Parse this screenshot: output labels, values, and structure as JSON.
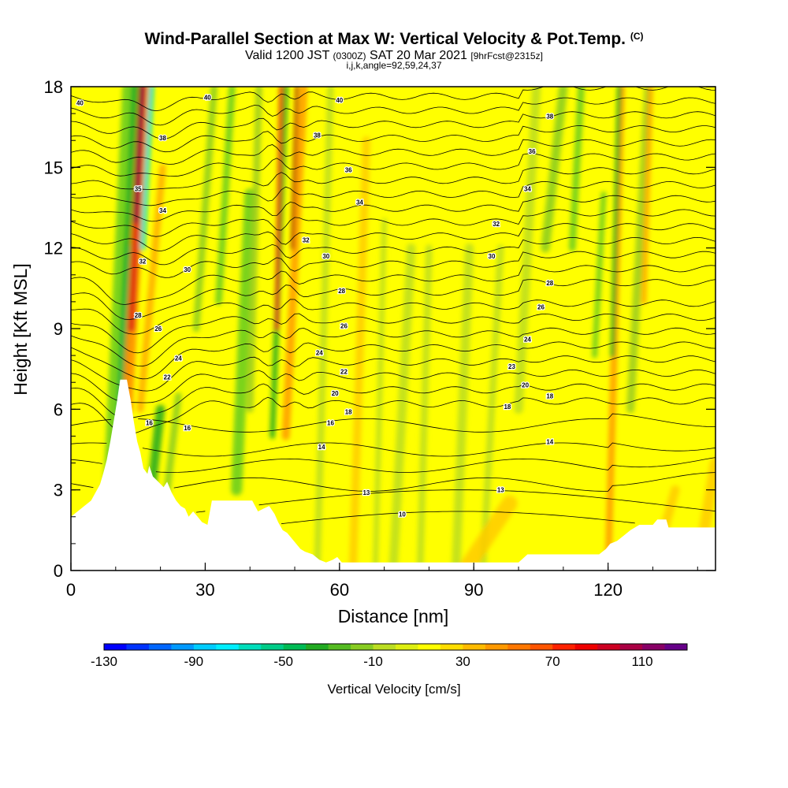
{
  "title": {
    "main": "Wind-Parallel Section at Max W: Vertical Velocity & Pot.Temp.",
    "copyright": "(C)",
    "valid_label": "Valid 1200 JST",
    "utc": "(0300Z)",
    "date": "SAT 20 Mar 2021",
    "forecast": "[9hrFcst@2315z]",
    "params": "i,j,k,angle=92,59,24,37"
  },
  "chart_data": {
    "type": "heatmap",
    "xlabel": "Distance [nm]",
    "ylabel": "Height [Kft MSL]",
    "xlim": [
      0,
      144
    ],
    "ylim": [
      0,
      18
    ],
    "x_ticks": [
      "0",
      "30",
      "60",
      "90",
      "120"
    ],
    "y_ticks": [
      "0",
      "3",
      "6",
      "9",
      "12",
      "15",
      "18"
    ],
    "x_tick_values": [
      0,
      30,
      60,
      90,
      120
    ],
    "y_tick_values": [
      0,
      3,
      6,
      9,
      12,
      15,
      18
    ],
    "colorbar": {
      "title": "Vertical Velocity [cm/s]",
      "tick_labels": [
        "-130",
        "-90",
        "-50",
        "-10",
        "30",
        "70",
        "110"
      ],
      "tick_values": [
        -130,
        -90,
        -50,
        -10,
        30,
        70,
        110
      ],
      "range": [
        -130,
        130
      ],
      "colors": [
        "#0000ff",
        "#0033ff",
        "#0066ff",
        "#0099ff",
        "#00ccff",
        "#00eeff",
        "#00ddbb",
        "#00cc88",
        "#00bb55",
        "#22aa22",
        "#55bb22",
        "#88cc22",
        "#bbdd22",
        "#ddee11",
        "#ffff00",
        "#ffdd00",
        "#ffbb00",
        "#ff9900",
        "#ff7700",
        "#ff5500",
        "#ff2200",
        "#ee0000",
        "#cc0022",
        "#aa0044",
        "#880066",
        "#660088"
      ]
    },
    "terrain": [
      [
        0,
        2
      ],
      [
        1.5,
        2.2
      ],
      [
        3,
        2.4
      ],
      [
        4.5,
        2.6
      ],
      [
        5.5,
        2.9
      ],
      [
        6.5,
        3.2
      ],
      [
        7.2,
        3.6
      ],
      [
        8,
        4.1
      ],
      [
        8.8,
        4.8
      ],
      [
        9.5,
        5.5
      ],
      [
        10.3,
        6.3
      ],
      [
        11,
        7.1
      ],
      [
        12.5,
        7.1
      ],
      [
        13.4,
        6.3
      ],
      [
        14,
        5.6
      ],
      [
        14.8,
        4.8
      ],
      [
        15.5,
        4.4
      ],
      [
        16.2,
        3.8
      ],
      [
        17.1,
        3.6
      ],
      [
        17.5,
        3.9
      ],
      [
        18.3,
        3.5
      ],
      [
        19.5,
        3.3
      ],
      [
        20.7,
        3.1
      ],
      [
        21.5,
        3.3
      ],
      [
        22.5,
        2.9
      ],
      [
        23.5,
        2.6
      ],
      [
        24.5,
        2.4
      ],
      [
        25.5,
        2.3
      ],
      [
        26.3,
        2.0
      ],
      [
        27.3,
        2.2
      ],
      [
        28.3,
        2.0
      ],
      [
        29.3,
        1.8
      ],
      [
        30.5,
        1.7
      ],
      [
        31.5,
        2.6
      ],
      [
        34,
        2.6
      ],
      [
        37,
        2.6
      ],
      [
        39,
        2.6
      ],
      [
        40.5,
        2.6
      ],
      [
        41.8,
        2.2
      ],
      [
        43,
        2.3
      ],
      [
        44.3,
        2.4
      ],
      [
        45.5,
        2.1
      ],
      [
        46.3,
        1.8
      ],
      [
        47.3,
        1.5
      ],
      [
        48.3,
        1.4
      ],
      [
        49.3,
        1.2
      ],
      [
        50.3,
        1.0
      ],
      [
        51.3,
        0.8
      ],
      [
        52.3,
        0.7
      ],
      [
        54,
        0.6
      ],
      [
        55.5,
        0.4
      ],
      [
        57,
        0.3
      ],
      [
        58.5,
        0.4
      ],
      [
        59.5,
        0.5
      ],
      [
        60.5,
        0.3
      ],
      [
        62.5,
        0.3
      ],
      [
        66,
        0.3
      ],
      [
        70,
        0.3
      ],
      [
        75,
        0.3
      ],
      [
        80,
        0.3
      ],
      [
        85,
        0.3
      ],
      [
        90,
        0.3
      ],
      [
        95,
        0.3
      ],
      [
        100,
        0.3
      ],
      [
        102,
        0.6
      ],
      [
        105,
        0.6
      ],
      [
        110,
        0.6
      ],
      [
        115,
        0.6
      ],
      [
        118,
        0.6
      ],
      [
        119.5,
        0.8
      ],
      [
        120.5,
        1.0
      ],
      [
        122,
        1.1
      ],
      [
        123.5,
        1.3
      ],
      [
        125,
        1.5
      ],
      [
        127,
        1.7
      ],
      [
        130,
        1.7
      ],
      [
        131,
        1.9
      ],
      [
        133,
        1.9
      ],
      [
        133.5,
        1.6
      ],
      [
        136,
        1.6
      ],
      [
        140,
        1.6
      ],
      [
        144,
        1.6
      ]
    ],
    "theta_labels": [
      {
        "text": "40",
        "x": 2,
        "y": 17.4
      },
      {
        "text": "40",
        "x": 30.5,
        "y": 17.6
      },
      {
        "text": "40",
        "x": 60,
        "y": 17.5
      },
      {
        "text": "38",
        "x": 20.5,
        "y": 16.1
      },
      {
        "text": "38",
        "x": 55,
        "y": 16.2
      },
      {
        "text": "38",
        "x": 107,
        "y": 16.9
      },
      {
        "text": "36",
        "x": 62,
        "y": 14.9
      },
      {
        "text": "36",
        "x": 103,
        "y": 15.6
      },
      {
        "text": "35",
        "x": 15,
        "y": 14.2
      },
      {
        "text": "34",
        "x": 20.5,
        "y": 13.4
      },
      {
        "text": "34",
        "x": 64.5,
        "y": 13.7
      },
      {
        "text": "34",
        "x": 102,
        "y": 14.2
      },
      {
        "text": "32",
        "x": 52.5,
        "y": 12.3
      },
      {
        "text": "32",
        "x": 95,
        "y": 12.9
      },
      {
        "text": "32",
        "x": 16,
        "y": 11.5
      },
      {
        "text": "30",
        "x": 26,
        "y": 11.2
      },
      {
        "text": "30",
        "x": 57,
        "y": 11.7
      },
      {
        "text": "30",
        "x": 94,
        "y": 11.7
      },
      {
        "text": "28",
        "x": 60.5,
        "y": 10.4
      },
      {
        "text": "28",
        "x": 107,
        "y": 10.7
      },
      {
        "text": "28",
        "x": 15,
        "y": 9.5
      },
      {
        "text": "26",
        "x": 19.5,
        "y": 9.0
      },
      {
        "text": "26",
        "x": 61,
        "y": 9.1
      },
      {
        "text": "26",
        "x": 105,
        "y": 9.8
      },
      {
        "text": "24",
        "x": 24,
        "y": 7.9
      },
      {
        "text": "24",
        "x": 55.5,
        "y": 8.1
      },
      {
        "text": "24",
        "x": 102,
        "y": 8.6
      },
      {
        "text": "23",
        "x": 98.5,
        "y": 7.6
      },
      {
        "text": "22",
        "x": 21.5,
        "y": 7.2
      },
      {
        "text": "22",
        "x": 61,
        "y": 7.4
      },
      {
        "text": "20",
        "x": 59,
        "y": 6.6
      },
      {
        "text": "20",
        "x": 101.5,
        "y": 6.9
      },
      {
        "text": "18",
        "x": 62,
        "y": 5.9
      },
      {
        "text": "18",
        "x": 107,
        "y": 6.5
      },
      {
        "text": "18",
        "x": 97.5,
        "y": 6.1
      },
      {
        "text": "16",
        "x": 17.5,
        "y": 5.5
      },
      {
        "text": "16",
        "x": 26,
        "y": 5.3
      },
      {
        "text": "16",
        "x": 58,
        "y": 5.5
      },
      {
        "text": "14",
        "x": 56,
        "y": 4.6
      },
      {
        "text": "14",
        "x": 107,
        "y": 4.8
      },
      {
        "text": "13",
        "x": 66,
        "y": 2.9
      },
      {
        "text": "13",
        "x": 96,
        "y": 3.0
      },
      {
        "text": "10",
        "x": 74,
        "y": 2.1
      }
    ]
  }
}
